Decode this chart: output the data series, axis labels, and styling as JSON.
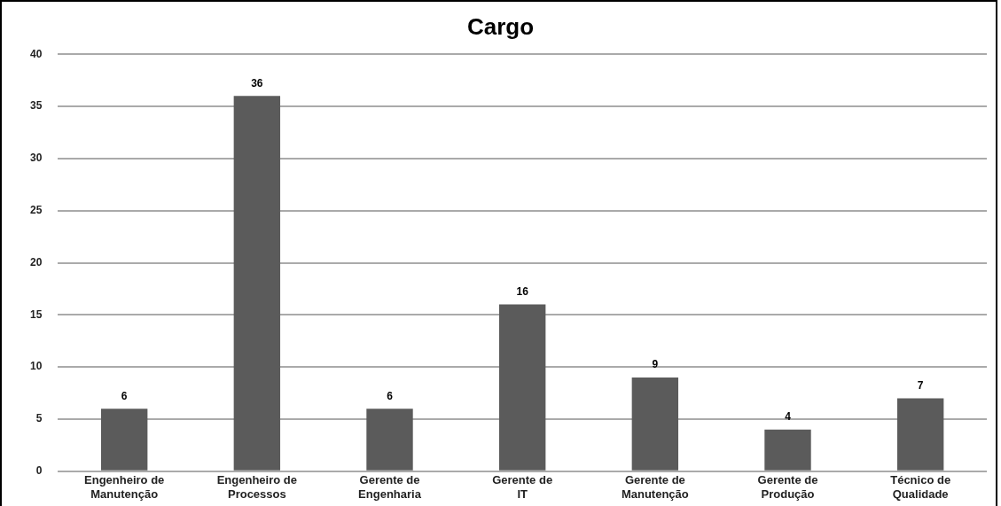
{
  "chart_data": {
    "type": "bar",
    "title": "Cargo",
    "categories": [
      "Engenheiro de Manutenção",
      "Engenheiro de Processos",
      "Gerente de Engenharia",
      "Gerente de IT",
      "Gerente de Manutenção",
      "Gerente de Produção",
      "Técnico de Qualidade"
    ],
    "values": [
      6,
      36,
      6,
      16,
      9,
      4,
      7
    ],
    "color": "#5b5b5b",
    "ylim": [
      0,
      40
    ],
    "yticks": [
      0,
      5,
      10,
      15,
      20,
      25,
      30,
      35,
      40
    ],
    "grid": "y",
    "legend": false,
    "data_labels": true
  }
}
